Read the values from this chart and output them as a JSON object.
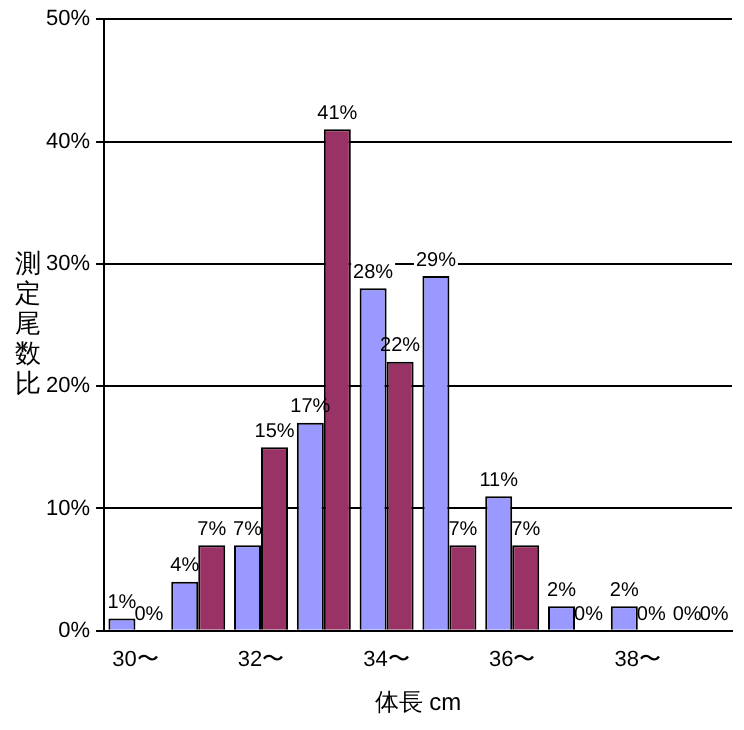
{
  "chart_data": {
    "type": "bar",
    "xlabel": "体長 cm",
    "ylabel": "測定尾数比",
    "categories": [
      "30〜",
      null,
      "32〜",
      null,
      "34〜",
      null,
      "36〜",
      null,
      "38〜",
      null
    ],
    "series": [
      {
        "color": "#9999ff",
        "values": [
          1,
          4,
          7,
          17,
          28,
          29,
          11,
          2,
          2,
          0
        ],
        "value_labels": [
          "1%",
          "4%",
          "7%",
          "17%",
          "28%",
          "29%",
          "11%",
          "2%",
          "2%",
          "0%"
        ]
      },
      {
        "color": "#993366",
        "values": [
          0,
          7,
          15,
          41,
          22,
          7,
          7,
          0,
          0,
          0
        ],
        "value_labels": [
          "0%",
          "7%",
          "15%",
          "41%",
          "22%",
          "7%",
          "7%",
          "0%",
          "0%",
          "0%"
        ]
      }
    ],
    "ylim": [
      0,
      50
    ],
    "yticks": [
      {
        "value": 0,
        "label": "0%"
      },
      {
        "value": 10,
        "label": "10%"
      },
      {
        "value": 20,
        "label": "20%"
      },
      {
        "value": 30,
        "label": "30%"
      },
      {
        "value": 40,
        "label": "40%"
      },
      {
        "value": 50,
        "label": "50%"
      }
    ],
    "grid": "y",
    "legend": false
  }
}
